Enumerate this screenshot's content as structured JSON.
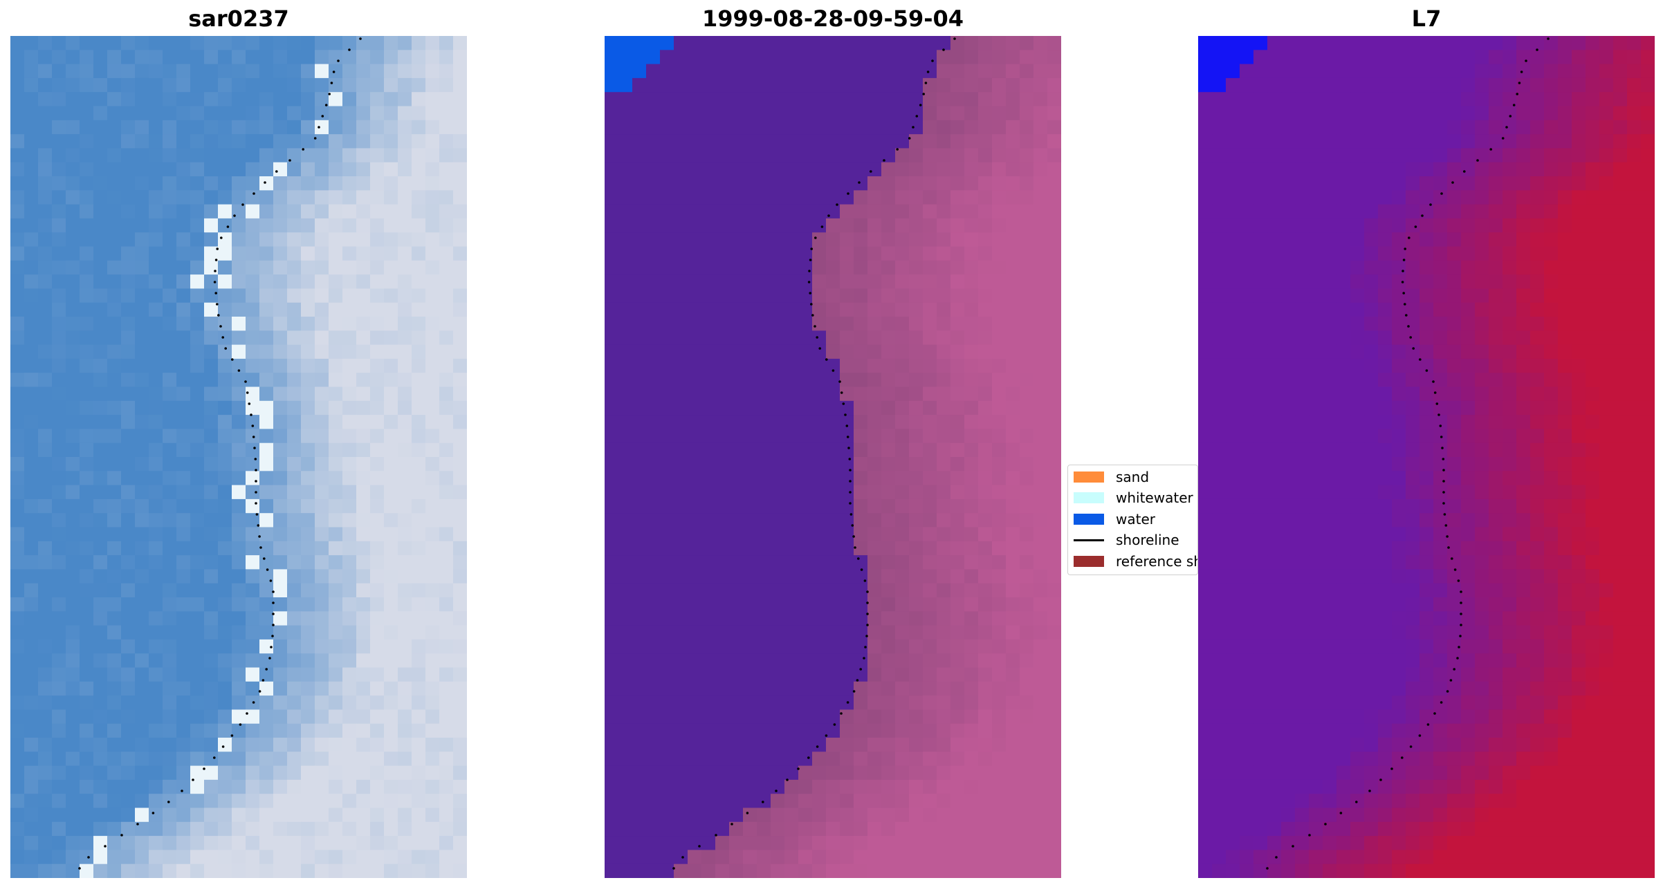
{
  "panels": {
    "left_title": "sar0237",
    "middle_title": "1999-08-28-09-59-04",
    "right_title": "L7"
  },
  "legend": {
    "items": [
      {
        "label": "sand",
        "kind": "patch",
        "color": "#ff8c3a"
      },
      {
        "label": "whitewater",
        "kind": "patch",
        "color": "#c8fdfd"
      },
      {
        "label": "water",
        "kind": "patch",
        "color": "#0a5ae6"
      },
      {
        "label": "shoreline",
        "kind": "line",
        "color": "#000000"
      },
      {
        "label": "reference shoreline",
        "kind": "patch",
        "color": "#9b2d2d"
      }
    ]
  },
  "colors": {
    "water_class": "#55239a",
    "water_class_corner": "#0a5ae6",
    "rgb_water": "#4a88c8",
    "rgb_land": "#d6dbe8",
    "index_water": "#6b1aa6",
    "index_land": "#c3143d",
    "index_corner": "#1414f5"
  }
}
